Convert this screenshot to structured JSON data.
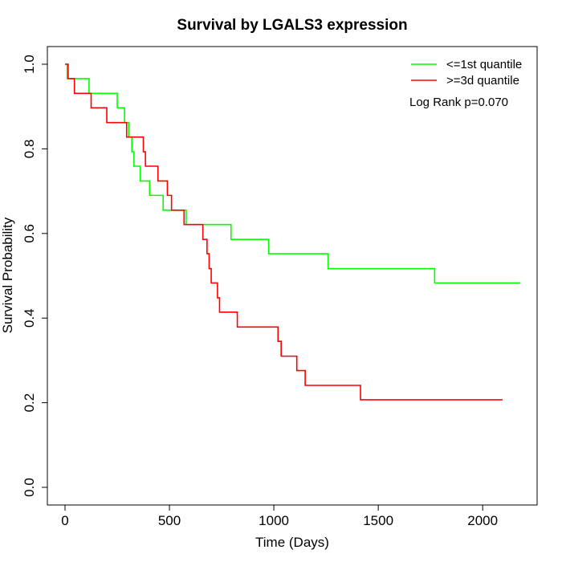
{
  "chart_data": {
    "type": "line",
    "title": "Survival by LGALS3 expression",
    "xlabel": "Time (Days)",
    "ylabel": "Survival Probability",
    "xlim": [
      0,
      2180
    ],
    "ylim": [
      0,
      1.0
    ],
    "x_ticks": [
      0,
      500,
      1000,
      1500,
      2000
    ],
    "y_ticks": [
      0.0,
      0.2,
      0.4,
      0.6,
      0.8,
      1.0
    ],
    "x_tick_labels": [
      "0",
      "500",
      "1000",
      "1500",
      "2000"
    ],
    "y_tick_labels": [
      "0.0",
      "0.2",
      "0.4",
      "0.6",
      "0.8",
      "1.0"
    ],
    "grid": false,
    "legend_position": "top-right",
    "annotation": "Log Rank p=0.070",
    "series": [
      {
        "name": "<=1st quantile",
        "color": "#00ff00",
        "step": true,
        "x": [
          0,
          10,
          115,
          250,
          285,
          305,
          320,
          330,
          360,
          405,
          470,
          500,
          580,
          795,
          975,
          1260,
          1770,
          2180
        ],
        "y": [
          1.0,
          0.966,
          0.931,
          0.897,
          0.862,
          0.828,
          0.793,
          0.759,
          0.724,
          0.69,
          0.655,
          0.655,
          0.621,
          0.586,
          0.552,
          0.517,
          0.483,
          0.483
        ]
      },
      {
        "name": ">=3d quantile",
        "color": "#ff0000",
        "step": true,
        "x": [
          0,
          15,
          45,
          125,
          200,
          295,
          375,
          385,
          445,
          490,
          510,
          530,
          570,
          660,
          680,
          690,
          700,
          710,
          730,
          740,
          825,
          1020,
          1035,
          1110,
          1150,
          1415,
          2095
        ],
        "y": [
          1.0,
          0.966,
          0.931,
          0.897,
          0.862,
          0.828,
          0.793,
          0.759,
          0.724,
          0.69,
          0.655,
          0.655,
          0.621,
          0.586,
          0.552,
          0.517,
          0.483,
          0.483,
          0.448,
          0.414,
          0.379,
          0.345,
          0.31,
          0.276,
          0.241,
          0.207,
          0.207
        ]
      }
    ]
  }
}
